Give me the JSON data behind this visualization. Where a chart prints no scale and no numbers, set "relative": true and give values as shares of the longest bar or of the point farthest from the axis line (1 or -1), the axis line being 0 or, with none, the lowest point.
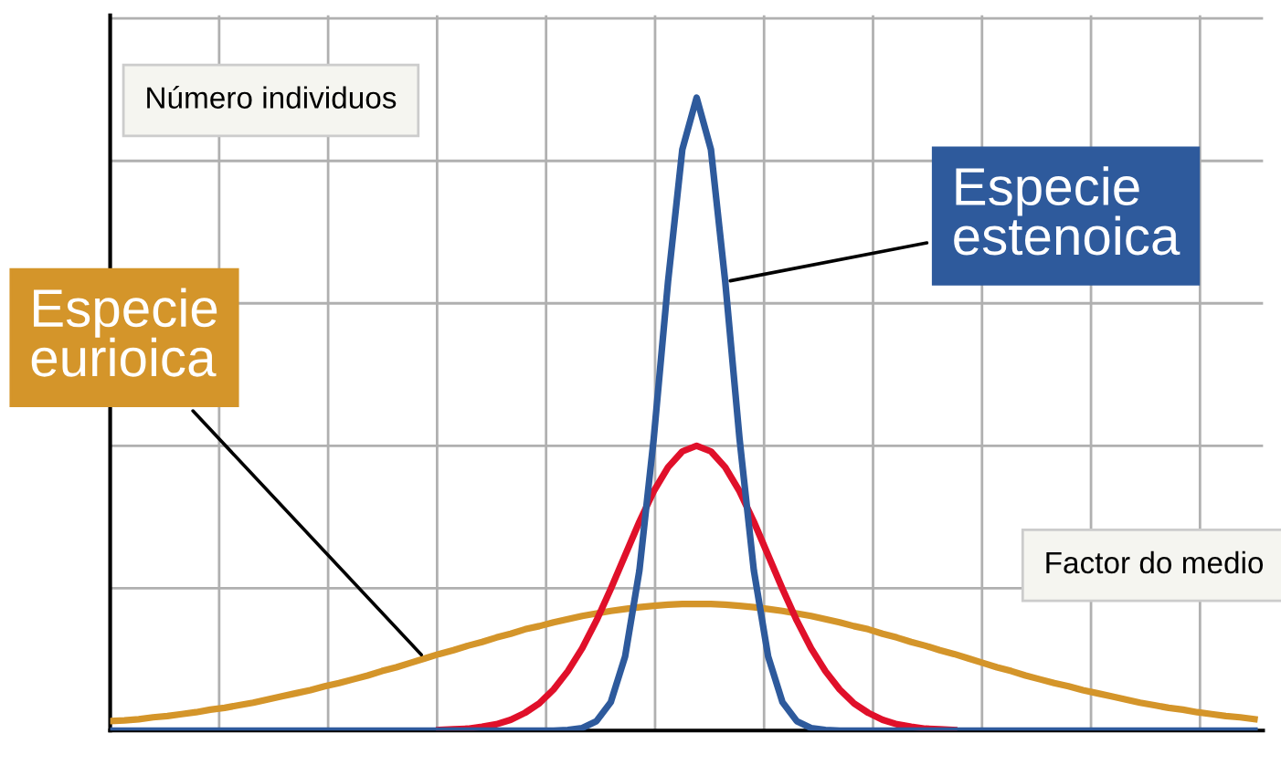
{
  "chart_data": {
    "type": "line",
    "relative": true,
    "xlabel": "Factor do medio",
    "ylabel": "Número individuos",
    "grid": true,
    "marker": "none",
    "line_style": "solid",
    "categories": [
      null,
      null,
      null,
      null,
      null,
      null,
      null,
      null,
      null,
      null,
      null,
      null,
      null,
      null,
      null,
      null,
      null,
      null,
      null,
      null,
      null,
      null,
      null,
      null,
      null,
      null,
      null,
      null,
      null,
      null,
      null,
      null,
      null,
      null,
      null,
      null,
      null,
      null,
      null,
      null,
      null,
      null,
      null,
      null,
      null,
      null,
      null,
      null,
      null,
      null,
      null,
      null,
      null,
      null,
      null,
      null,
      null,
      null,
      null,
      null,
      null,
      null,
      null,
      null,
      null,
      null,
      null,
      null,
      null,
      null,
      null,
      null,
      null,
      null,
      null,
      null,
      null,
      null,
      null,
      null,
      null
    ],
    "series": [
      {
        "name": "Especie eurioica",
        "color": "#d4952a",
        "values": [
          0.015,
          0.016,
          0.018,
          0.021,
          0.023,
          0.026,
          0.029,
          0.033,
          0.036,
          0.04,
          0.044,
          0.049,
          0.054,
          0.059,
          0.064,
          0.07,
          0.075,
          0.081,
          0.087,
          0.094,
          0.1,
          0.107,
          0.114,
          0.121,
          0.127,
          0.134,
          0.14,
          0.147,
          0.153,
          0.16,
          0.165,
          0.171,
          0.176,
          0.181,
          0.185,
          0.189,
          0.192,
          0.195,
          0.197,
          0.199,
          0.2,
          0.2,
          0.2,
          0.199,
          0.197,
          0.195,
          0.192,
          0.189,
          0.185,
          0.181,
          0.176,
          0.171,
          0.165,
          0.16,
          0.153,
          0.147,
          0.14,
          0.134,
          0.127,
          0.121,
          0.114,
          0.107,
          0.1,
          0.094,
          0.087,
          0.081,
          0.075,
          0.07,
          0.064,
          0.059,
          0.054,
          0.049,
          0.044,
          0.04,
          0.036,
          0.033,
          0.029,
          0.026,
          0.023,
          0.021,
          0.018
        ]
      },
      {
        "color": "#e0102a",
        "values": [
          null,
          null,
          null,
          null,
          null,
          null,
          null,
          null,
          null,
          null,
          null,
          null,
          null,
          null,
          null,
          null,
          null,
          null,
          null,
          null,
          null,
          null,
          null,
          0.001,
          0.002,
          0.003,
          0.006,
          0.01,
          0.017,
          0.028,
          0.043,
          0.065,
          0.094,
          0.13,
          0.174,
          0.224,
          0.277,
          0.33,
          0.378,
          0.416,
          0.441,
          0.45,
          0.441,
          0.416,
          0.378,
          0.33,
          0.277,
          0.224,
          0.174,
          0.13,
          0.094,
          0.065,
          0.043,
          0.028,
          0.017,
          0.01,
          0.006,
          0.003,
          0.002,
          0.001,
          null,
          null,
          null,
          null,
          null,
          null,
          null,
          null,
          null,
          null,
          null,
          null,
          null,
          null,
          null,
          null,
          null,
          null,
          null,
          null,
          null
        ]
      },
      {
        "name": "Especie estenoica",
        "color": "#2e5a9c",
        "values": [
          0,
          0,
          0,
          0,
          0,
          0,
          0,
          0,
          0,
          0,
          0,
          0,
          0,
          0,
          0,
          0,
          0,
          0,
          0,
          0,
          0,
          0,
          0,
          0,
          0,
          0,
          0,
          0,
          0,
          0,
          0,
          0,
          0.001,
          0.004,
          0.015,
          0.045,
          0.117,
          0.253,
          0.461,
          0.709,
          0.918,
          1,
          0.918,
          0.709,
          0.461,
          0.253,
          0.117,
          0.045,
          0.015,
          0.004,
          0.001,
          0,
          0,
          0,
          0,
          0,
          0,
          0,
          0,
          0,
          0,
          0,
          0,
          0,
          0,
          0,
          0,
          0,
          0,
          0,
          0,
          0,
          0,
          0,
          0,
          0,
          0,
          0,
          0,
          0,
          0
        ]
      }
    ]
  }
}
